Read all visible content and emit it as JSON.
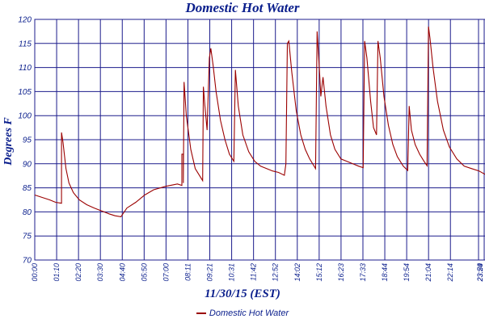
{
  "chart_data": {
    "type": "line",
    "title": "Domestic Hot Water",
    "xlabel": "11/30/15 (EST)",
    "ylabel": "Degrees F",
    "ylim": [
      70,
      120
    ],
    "yticks": [
      "120",
      "115",
      "110",
      "105",
      "100",
      "95",
      "90",
      "85",
      "80",
      "75",
      "70"
    ],
    "xticks": [
      "00:00",
      "01:10",
      "02:20",
      "03:30",
      "04:40",
      "05:50",
      "07:00",
      "08:11",
      "09:21",
      "10:31",
      "11:42",
      "12:52",
      "14:02",
      "15:12",
      "16:23",
      "17:33",
      "18:44",
      "19:54",
      "21:04",
      "22:14",
      "23:24",
      "23:59"
    ],
    "grid": true,
    "legend_position": "bottom",
    "colors": {
      "line": "#9b0000",
      "grid": "#1c1c8c",
      "text": "#0a1e8c"
    },
    "series": [
      {
        "name": "Domestic Hot Water",
        "points": [
          [
            0.0,
            83.5
          ],
          [
            0.5,
            83.0
          ],
          [
            1.0,
            82.5
          ],
          [
            1.4,
            82.0
          ],
          [
            1.8,
            81.8
          ],
          [
            1.8,
            96.5
          ],
          [
            1.9,
            94.5
          ],
          [
            2.1,
            89.0
          ],
          [
            2.3,
            86.0
          ],
          [
            2.6,
            84.0
          ],
          [
            3.0,
            82.5
          ],
          [
            3.5,
            81.5
          ],
          [
            4.0,
            80.8
          ],
          [
            4.5,
            80.2
          ],
          [
            5.0,
            79.6
          ],
          [
            5.4,
            79.2
          ],
          [
            5.8,
            79.0
          ],
          [
            6.2,
            80.8
          ],
          [
            6.8,
            82.0
          ],
          [
            7.4,
            83.5
          ],
          [
            8.0,
            84.6
          ],
          [
            8.8,
            85.3
          ],
          [
            9.6,
            85.8
          ],
          [
            9.9,
            85.5
          ],
          [
            9.9,
            92.0
          ],
          [
            10.0,
            92.0
          ],
          [
            10.0,
            86.0
          ],
          [
            10.05,
            107.0
          ],
          [
            10.2,
            100.0
          ],
          [
            10.5,
            93.0
          ],
          [
            10.8,
            89.0
          ],
          [
            11.1,
            87.5
          ],
          [
            11.3,
            86.5
          ],
          [
            11.35,
            106.0
          ],
          [
            11.45,
            102.0
          ],
          [
            11.6,
            97.0
          ],
          [
            11.75,
            112.0
          ],
          [
            11.85,
            114.0
          ],
          [
            12.0,
            110.5
          ],
          [
            12.2,
            105.0
          ],
          [
            12.5,
            99.0
          ],
          [
            12.8,
            95.0
          ],
          [
            13.1,
            92.0
          ],
          [
            13.4,
            90.5
          ],
          [
            13.5,
            109.5
          ],
          [
            13.7,
            102.0
          ],
          [
            14.0,
            96.0
          ],
          [
            14.4,
            92.5
          ],
          [
            14.8,
            90.5
          ],
          [
            15.2,
            89.5
          ],
          [
            15.6,
            89.0
          ],
          [
            16.0,
            88.5
          ],
          [
            16.4,
            88.2
          ],
          [
            16.8,
            87.6
          ],
          [
            16.9,
            90.0
          ],
          [
            17.0,
            115.0
          ],
          [
            17.1,
            115.5
          ],
          [
            17.3,
            109.0
          ],
          [
            17.6,
            101.0
          ],
          [
            17.9,
            96.0
          ],
          [
            18.2,
            93.0
          ],
          [
            18.5,
            91.0
          ],
          [
            18.9,
            89.0
          ],
          [
            19.0,
            117.5
          ],
          [
            19.15,
            110.0
          ],
          [
            19.25,
            104.0
          ],
          [
            19.4,
            108.0
          ],
          [
            19.6,
            102.0
          ],
          [
            19.9,
            96.0
          ],
          [
            20.2,
            93.0
          ],
          [
            20.6,
            91.0
          ],
          [
            21.0,
            90.5
          ],
          [
            21.4,
            90.0
          ],
          [
            21.8,
            89.5
          ],
          [
            22.1,
            89.2
          ],
          [
            22.2,
            115.5
          ],
          [
            22.35,
            112.0
          ],
          [
            22.6,
            103.0
          ],
          [
            22.8,
            97.5
          ],
          [
            23.0,
            96.0
          ],
          [
            23.1,
            115.5
          ],
          [
            23.25,
            112.0
          ],
          [
            23.5,
            104.0
          ],
          [
            23.8,
            98.0
          ],
          [
            24.1,
            94.0
          ],
          [
            24.4,
            91.5
          ],
          [
            24.8,
            89.5
          ],
          [
            25.1,
            88.6
          ],
          [
            25.2,
            102.0
          ],
          [
            25.35,
            97.0
          ],
          [
            25.6,
            94.0
          ],
          [
            25.9,
            92.0
          ],
          [
            26.2,
            90.5
          ],
          [
            26.4,
            89.6
          ],
          [
            26.5,
            118.5
          ],
          [
            26.6,
            116.0
          ],
          [
            26.8,
            110.0
          ],
          [
            27.1,
            103.0
          ],
          [
            27.5,
            97.0
          ],
          [
            27.9,
            93.5
          ],
          [
            28.4,
            91.0
          ],
          [
            28.9,
            89.5
          ],
          [
            29.4,
            89.0
          ],
          [
            29.9,
            88.5
          ],
          [
            30.3,
            87.8
          ]
        ]
      }
    ]
  }
}
